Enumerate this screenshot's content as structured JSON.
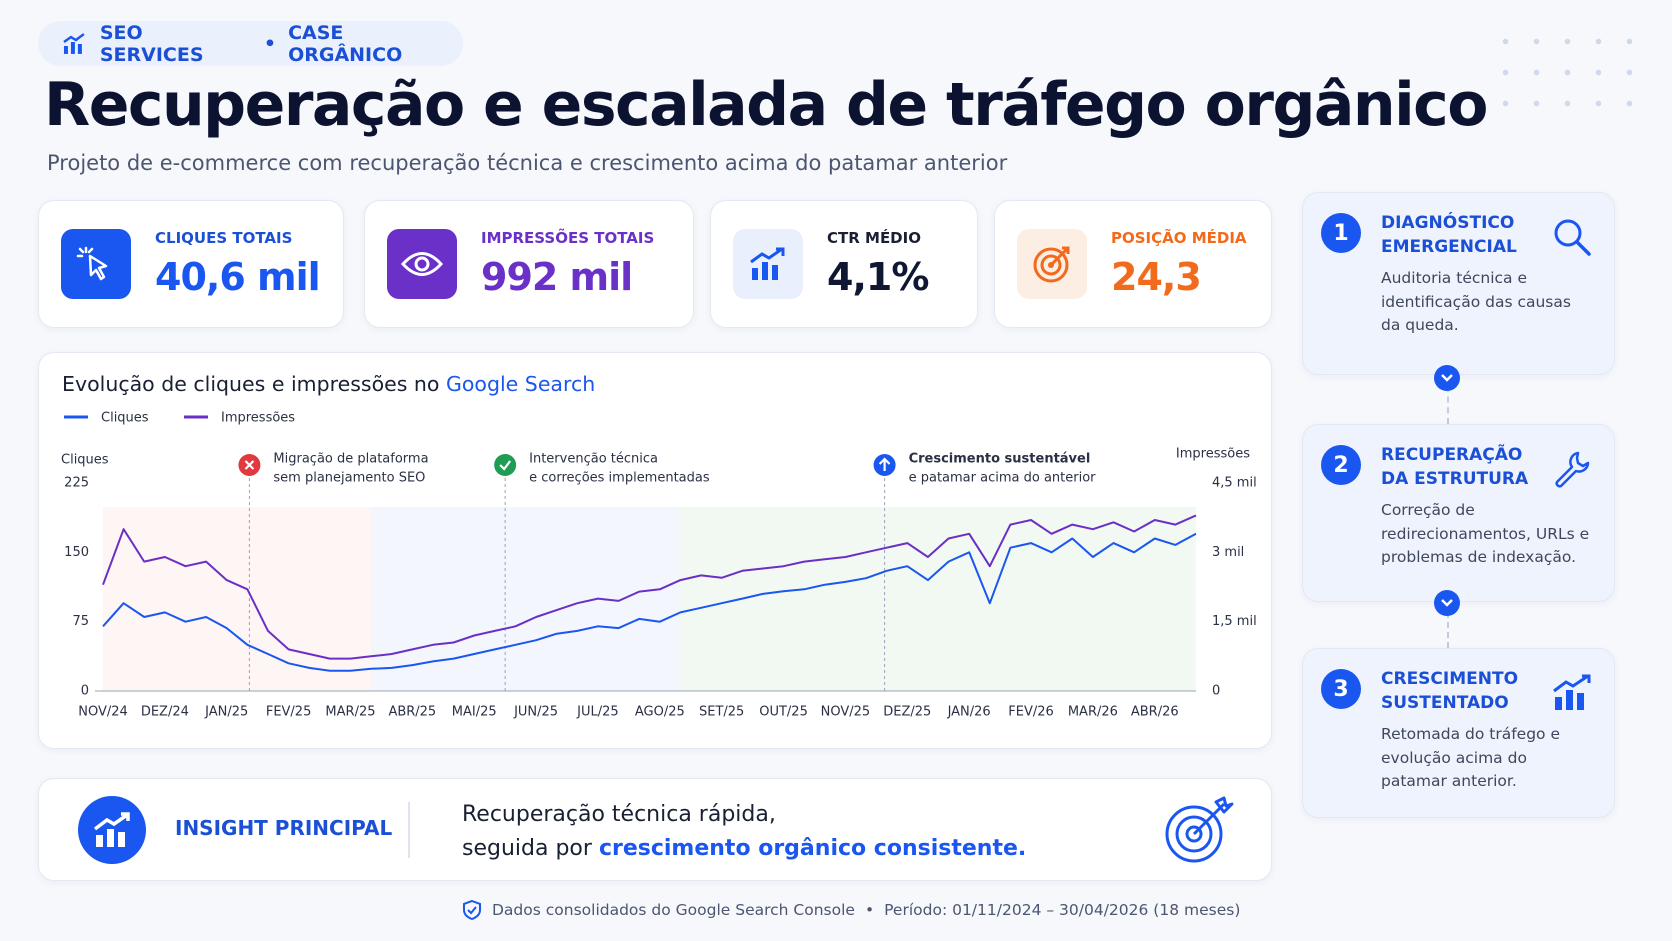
{
  "header": {
    "badge": [
      "SEO SERVICES",
      "CASE ORGÂNICO"
    ],
    "title": "Recuperação e escalada de tráfego orgânico",
    "subtitle": "Projeto de e-commerce com recuperação técnica e crescimento acima do patamar anterior"
  },
  "kpis": [
    {
      "label": "CLIQUES TOTAIS",
      "value": "40,6 mil"
    },
    {
      "label": "IMPRESSÕES TOTAIS",
      "value": "992 mil"
    },
    {
      "label": "CTR MÉDIO",
      "value": "4,1%"
    },
    {
      "label": "POSIÇÃO MÉDIA",
      "value": "24,3"
    }
  ],
  "chart_data": {
    "type": "line",
    "title": "Evolução de cliques e impressões no",
    "title_highlight": "Google Search",
    "y_label": "Cliques",
    "y2_label": "Impressões",
    "categories": [
      "NOV/24",
      null,
      null,
      "DEZ/24",
      null,
      null,
      "JAN/25",
      null,
      null,
      "FEV/25",
      null,
      null,
      "MAR/25",
      null,
      null,
      "ABR/25",
      null,
      null,
      "MAI/25",
      null,
      null,
      "JUN/25",
      null,
      null,
      "JUL/25",
      null,
      null,
      "AGO/25",
      null,
      null,
      "SET/25",
      null,
      null,
      "OUT/25",
      null,
      null,
      "NOV/25",
      null,
      null,
      "DEZ/25",
      null,
      null,
      "JAN/26",
      null,
      null,
      "FEV/26",
      null,
      null,
      "MAR/26",
      null,
      null,
      "ABR/26",
      null,
      null
    ],
    "series": [
      {
        "name": "Cliques",
        "color": "#1a56f0",
        "values": [
          70,
          95,
          80,
          85,
          75,
          80,
          68,
          50,
          40,
          30,
          25,
          22,
          22,
          24,
          25,
          28,
          32,
          35,
          40,
          45,
          50,
          55,
          62,
          65,
          70,
          68,
          78,
          75,
          85,
          90,
          95,
          100,
          105,
          108,
          110,
          115,
          118,
          122,
          130,
          135,
          120,
          140,
          150,
          95,
          155,
          160,
          150,
          165,
          145,
          160,
          150,
          165,
          158,
          170
        ]
      },
      {
        "name": "Impressões",
        "color": "#6a2fc4",
        "axis": "y2",
        "values": [
          2300,
          3500,
          2800,
          2900,
          2700,
          2800,
          2400,
          2200,
          1300,
          900,
          800,
          700,
          700,
          750,
          800,
          900,
          1000,
          1050,
          1200,
          1300,
          1400,
          1600,
          1750,
          1900,
          2000,
          1950,
          2150,
          2200,
          2400,
          2500,
          2450,
          2600,
          2650,
          2700,
          2800,
          2850,
          2900,
          3000,
          3100,
          3200,
          2900,
          3300,
          3400,
          2700,
          3600,
          3700,
          3400,
          3600,
          3500,
          3650,
          3450,
          3700,
          3600,
          3800
        ]
      }
    ],
    "ylim": [
      0,
      225
    ],
    "yticks": [
      0,
      75,
      150,
      225
    ],
    "y2lim": [
      0,
      4500
    ],
    "y2ticks": [
      0,
      {
        "value": 1500,
        "label": "1,5 mil"
      },
      {
        "value": 3000,
        "label": "3 mil"
      },
      {
        "value": 4500,
        "label": "4,5 mil"
      }
    ],
    "grid": false,
    "legend": "top-left",
    "annotations": [
      {
        "lines": [
          "Migração de plataforma",
          "sem planejamento SEO"
        ]
      },
      {
        "lines": [
          "Intervenção técnica",
          "e correções implementadas"
        ]
      },
      {
        "lines": [
          "Crescimento sustentável",
          "e patamar acima do anterior"
        ]
      }
    ]
  },
  "steps": [
    {
      "number": "1",
      "title": "DIAGNÓSTICO EMERGENCIAL",
      "text": "Auditoria técnica e identificação das causas da queda."
    },
    {
      "number": "2",
      "title": "RECUPERAÇÃO DA ESTRUTURA",
      "text": "Correção de redirecionamentos, URLs e problemas de indexação."
    },
    {
      "number": "3",
      "title": "CRESCIMENTO SUSTENTADO",
      "text": "Retomada do tráfego e evolução acima do patamar anterior."
    }
  ],
  "insight": {
    "label": "INSIGHT PRINCIPAL",
    "line1": "Recuperação técnica rápida,",
    "line2": "seguida por",
    "highlight": "crescimento orgânico consistente."
  },
  "footer": {
    "source": "Dados consolidados do Google Search Console",
    "period": "Período: 01/11/2024 – 30/04/2026 (18 meses)"
  }
}
